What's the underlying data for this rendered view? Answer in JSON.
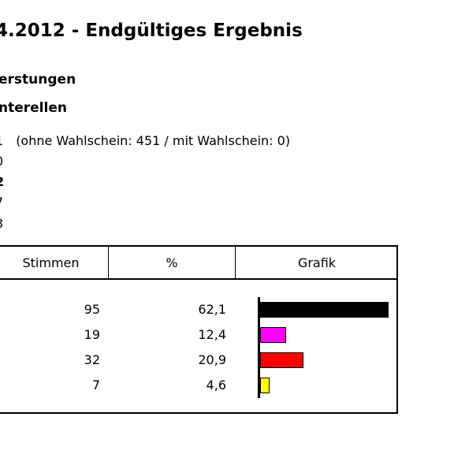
{
  "header": {
    "title": "4.2012 - Endgültiges Ergebnis",
    "subtitle_1": "erstungen",
    "subtitle_2": "nterellen"
  },
  "info": [
    {
      "value": "1",
      "detail": "(ohne Wahlschein: 451 / mit Wahlschein: 0)",
      "bold": false
    },
    {
      "value": "0",
      "detail": "",
      "bold": false
    },
    {
      "value": "2",
      "detail": "",
      "bold": true
    },
    {
      "value": "7",
      "detail": "",
      "bold": false
    },
    {
      "value": "3",
      "detail": "",
      "bold": false
    }
  ],
  "table": {
    "headers": [
      "Stimmen",
      "%",
      "Grafik"
    ],
    "rows": [
      {
        "votes": "95",
        "percent": "62,1",
        "pct_value": 62.1,
        "color": "#000000"
      },
      {
        "votes": "19",
        "percent": "12,4",
        "pct_value": 12.4,
        "color": "#ff00ff"
      },
      {
        "votes": "32",
        "percent": "20,9",
        "pct_value": 20.9,
        "color": "#ff0000"
      },
      {
        "votes": "7",
        "percent": "4,6",
        "pct_value": 4.6,
        "color": "#ffff00"
      }
    ]
  }
}
